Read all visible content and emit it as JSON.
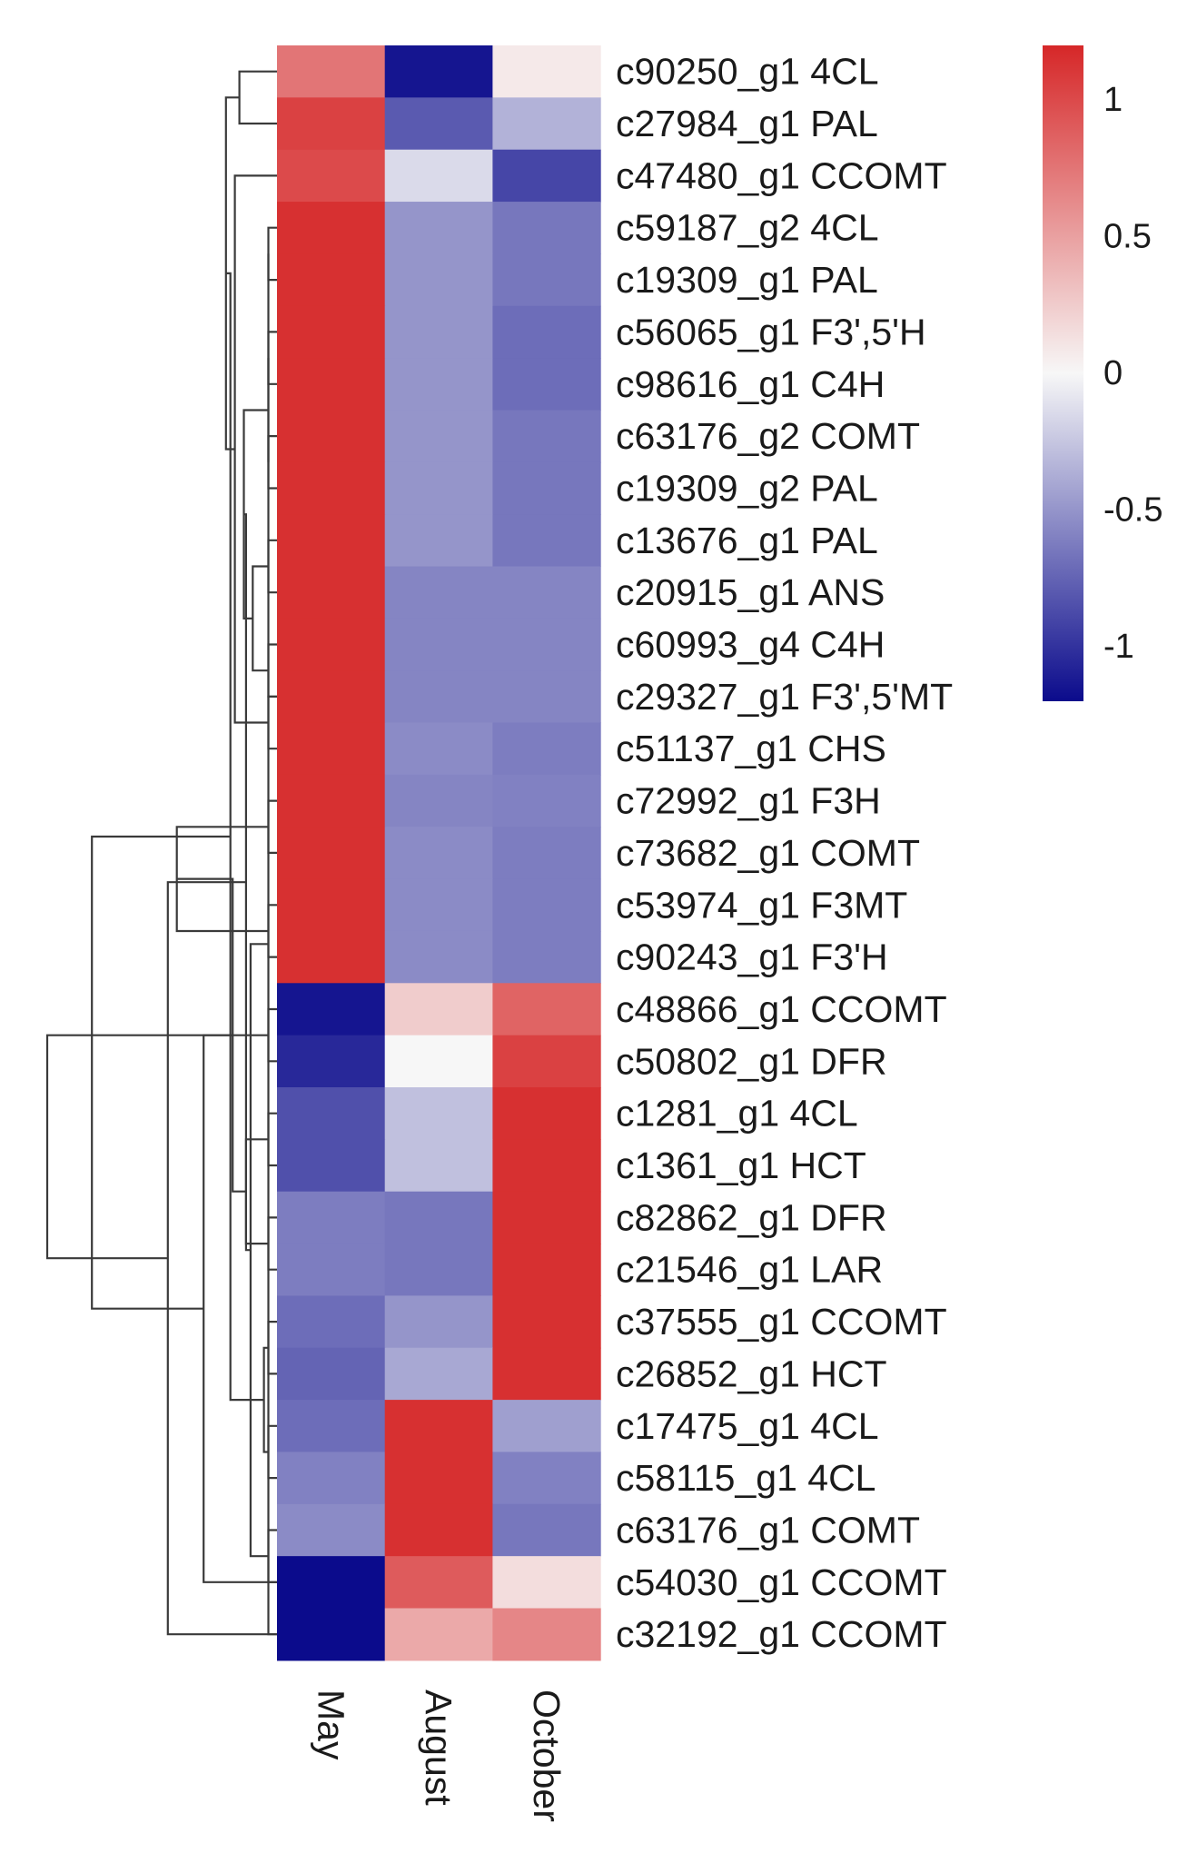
{
  "chart_data": {
    "type": "heatmap",
    "title": "",
    "columns": [
      "May",
      "August",
      "October"
    ],
    "rows": [
      "c90250_g1 4CL",
      "c27984_g1 PAL",
      "c47480_g1 CCOMT",
      "c59187_g2 4CL",
      "c19309_g1 PAL",
      "c56065_g1 F3',5'H",
      "c98616_g1 C4H",
      "c63176_g2 COMT",
      "c19309_g2 PAL",
      "c13676_g1 PAL",
      "c20915_g1 ANS",
      "c60993_g4 C4H",
      "c29327_g1 F3',5'MT",
      "c51137_g1 CHS",
      "c72992_g1 F3H",
      "c73682_g1 COMT",
      "c53974_g1 F3MT",
      "c90243_g1 F3'H",
      "c48866_g1 CCOMT",
      "c50802_g1 DFR",
      "c1281_g1 4CL",
      "c1361_g1 HCT",
      "c82862_g1 DFR",
      "c21546_g1 LAR",
      "c37555_g1 CCOMT",
      "c26852_g1 HCT",
      "c17475_g1 4CL",
      "c58115_g1 4CL",
      "c63176_g1 COMT",
      "c54030_g1 CCOMT",
      "c32192_g1 CCOMT"
    ],
    "values": [
      [
        0.75,
        -1.15,
        0.08
      ],
      [
        1.05,
        -0.8,
        -0.35
      ],
      [
        1.0,
        -0.15,
        -0.9
      ],
      [
        1.15,
        -0.5,
        -0.65
      ],
      [
        1.15,
        -0.5,
        -0.65
      ],
      [
        1.15,
        -0.5,
        -0.7
      ],
      [
        1.15,
        -0.5,
        -0.7
      ],
      [
        1.15,
        -0.5,
        -0.65
      ],
      [
        1.15,
        -0.5,
        -0.65
      ],
      [
        1.15,
        -0.5,
        -0.65
      ],
      [
        1.15,
        -0.58,
        -0.58
      ],
      [
        1.15,
        -0.58,
        -0.58
      ],
      [
        1.15,
        -0.58,
        -0.58
      ],
      [
        1.15,
        -0.55,
        -0.62
      ],
      [
        1.15,
        -0.58,
        -0.6
      ],
      [
        1.15,
        -0.55,
        -0.62
      ],
      [
        1.15,
        -0.55,
        -0.62
      ],
      [
        1.15,
        -0.55,
        -0.62
      ],
      [
        -1.15,
        0.25,
        0.85
      ],
      [
        -1.05,
        0.0,
        1.05
      ],
      [
        -0.85,
        -0.28,
        1.15
      ],
      [
        -0.85,
        -0.28,
        1.15
      ],
      [
        -0.62,
        -0.65,
        1.15
      ],
      [
        -0.62,
        -0.65,
        1.15
      ],
      [
        -0.7,
        -0.5,
        1.15
      ],
      [
        -0.75,
        -0.4,
        1.15
      ],
      [
        -0.7,
        1.15,
        -0.45
      ],
      [
        -0.6,
        1.15,
        -0.6
      ],
      [
        -0.55,
        1.15,
        -0.65
      ],
      [
        -1.2,
        0.9,
        0.15
      ],
      [
        -1.2,
        0.45,
        0.65
      ]
    ],
    "colorbar": {
      "min": -1.2,
      "max": 1.2,
      "ticks": [
        1,
        0.5,
        0,
        -0.5,
        -1
      ],
      "tick_labels": [
        "1",
        "0.5",
        "0",
        "-0.5",
        "-1"
      ],
      "low_color": "#0b0b8c",
      "mid_color": "#f7f7f7",
      "high_color": "#d62728"
    },
    "dendrogram": {
      "side": "left",
      "merges": [
        [
          3,
          4
        ],
        [
          5,
          6
        ],
        [
          7,
          8
        ],
        [
          9,
          10
        ],
        [
          11,
          12
        ],
        [
          12,
          13
        ],
        [
          14,
          15
        ],
        [
          16,
          17
        ],
        [
          18,
          19
        ],
        [
          20,
          21
        ],
        [
          22,
          23
        ],
        [
          24,
          25
        ],
        [
          26,
          27
        ],
        [
          28,
          29
        ],
        [
          30,
          31
        ],
        [
          32,
          33
        ],
        [
          34,
          35
        ],
        [
          0,
          1
        ],
        [
          2,
          36
        ],
        [
          37,
          38
        ],
        [
          40,
          41
        ],
        [
          42,
          43
        ],
        [
          44,
          45
        ],
        [
          46,
          47
        ],
        [
          48,
          49
        ],
        [
          50,
          51
        ],
        [
          53,
          54
        ],
        [
          55,
          52
        ],
        [
          56,
          29
        ],
        [
          57,
          30
        ],
        [
          58,
          59
        ],
        [
          39,
          60
        ]
      ],
      "heights": [
        0.01,
        0.01,
        0.01,
        0.01,
        0.01,
        0.01,
        0.01,
        0.01,
        0.01,
        0.01,
        0.01,
        0.01,
        0.01,
        0.01,
        0.01,
        0.01,
        0.08,
        0.14,
        0.16,
        0.42,
        0.11,
        0.03,
        0.09,
        0.12,
        0.2,
        0.17,
        0.11,
        0.18,
        0.3,
        0.46,
        0.8,
        1.0
      ]
    }
  }
}
